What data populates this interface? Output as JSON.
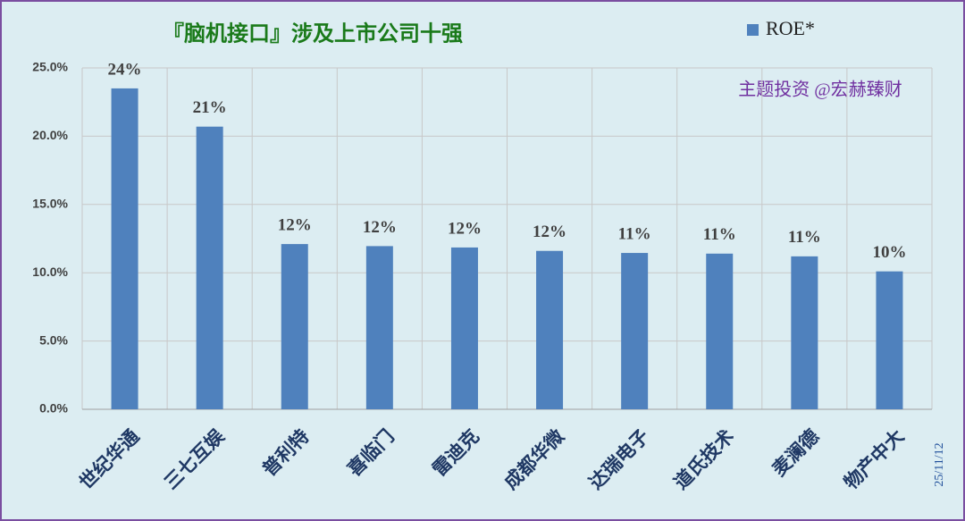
{
  "chart_data": {
    "type": "bar",
    "title": "『脑机接口』涉及上市公司十强",
    "categories": [
      "世纪华通",
      "三七互娱",
      "普利特",
      "喜临门",
      "雷迪克",
      "成都华微",
      "达瑞电子",
      "道氏技术",
      "麦澜德",
      "物产中大"
    ],
    "series": [
      {
        "name": "ROE*",
        "color": "#4f81bd",
        "values": [
          23.5,
          20.7,
          12.1,
          11.95,
          11.85,
          11.6,
          11.45,
          11.4,
          11.2,
          10.1
        ],
        "value_labels": [
          "24%",
          "21%",
          "12%",
          "12%",
          "12%",
          "12%",
          "11%",
          "11%",
          "11%",
          "10%"
        ]
      }
    ],
    "ylim": [
      0,
      25
    ],
    "yticks": [
      {
        "value": 0,
        "label": "0.0%"
      },
      {
        "value": 5,
        "label": "5.0%"
      },
      {
        "value": 10,
        "label": "10.0%"
      },
      {
        "value": 15,
        "label": "15.0%"
      },
      {
        "value": 20,
        "label": "20.0%"
      },
      {
        "value": 25,
        "label": "25.0%"
      }
    ],
    "grid": true,
    "legend": "top-right",
    "annotations": [
      "主题投资 @宏赫臻财",
      "25/11/12"
    ]
  }
}
